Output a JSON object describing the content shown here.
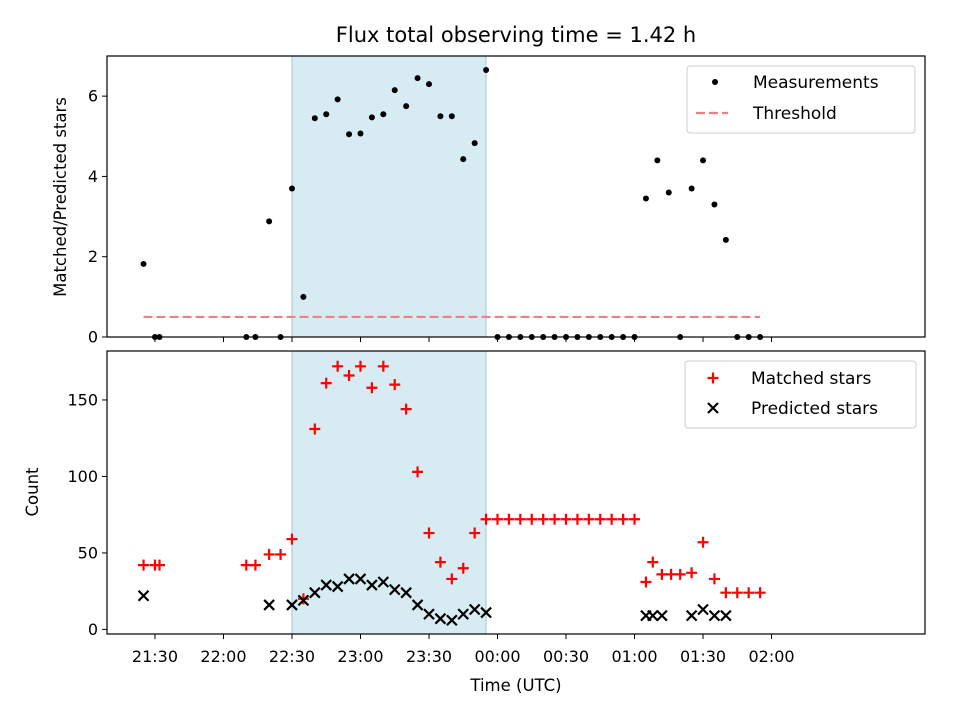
{
  "figure_title": "Flux total observing time = 1.42 h",
  "chart_data": [
    {
      "type": "scatter",
      "panel": "top",
      "ylabel": "Matched/Predicted stars",
      "ylim": [
        0,
        7
      ],
      "yticks": [
        0,
        2,
        4,
        6
      ],
      "xlim": [
        -0.35,
        5.62
      ],
      "shaded_span": [
        "22:30",
        "23:55"
      ],
      "series": [
        {
          "name": "Measurements",
          "marker": "dot",
          "color": "#000000",
          "x": [
            "21:25",
            "21:30",
            "21:32",
            "22:10",
            "22:14",
            "22:20",
            "22:25",
            "22:30",
            "22:35",
            "22:40",
            "22:45",
            "22:50",
            "22:55",
            "23:00",
            "23:05",
            "23:10",
            "23:15",
            "23:20",
            "23:25",
            "23:30",
            "23:35",
            "23:40",
            "23:45",
            "23:50",
            "23:55",
            "00:00",
            "00:05",
            "00:10",
            "00:15",
            "00:20",
            "00:25",
            "00:30",
            "00:35",
            "00:40",
            "00:45",
            "00:50",
            "00:55",
            "01:00",
            "01:05",
            "01:10",
            "01:15",
            "01:20",
            "01:25",
            "01:30",
            "01:35",
            "01:40",
            "01:45",
            "01:50",
            "01:55"
          ],
          "y": [
            1.82,
            0,
            0,
            0,
            0,
            2.88,
            0,
            3.7,
            1.0,
            5.45,
            5.55,
            5.92,
            5.05,
            5.07,
            5.47,
            5.55,
            6.15,
            5.75,
            6.45,
            6.3,
            5.5,
            5.5,
            4.43,
            4.83,
            6.65,
            0,
            0,
            0,
            0,
            0,
            0,
            0,
            0,
            0,
            0,
            0,
            0,
            0,
            3.45,
            4.4,
            3.6,
            0,
            3.7,
            4.4,
            3.3,
            2.42,
            0,
            0,
            0
          ]
        },
        {
          "name": "Threshold",
          "style": "dashed",
          "color": "#f08080",
          "x": [
            "21:25",
            "01:55"
          ],
          "y": [
            0.5,
            0.5
          ]
        }
      ],
      "legend": "top-right"
    },
    {
      "type": "scatter",
      "panel": "bottom",
      "xlabel": "Time (UTC)",
      "ylabel": "Count",
      "ylim": [
        -3,
        182
      ],
      "yticks": [
        0,
        50,
        100,
        150
      ],
      "xlim": [
        -0.35,
        5.62
      ],
      "xticks": [
        "21:30",
        "22:00",
        "22:30",
        "23:00",
        "23:30",
        "00:00",
        "00:30",
        "01:00",
        "01:30",
        "02:00"
      ],
      "shaded_span": [
        "22:30",
        "23:55"
      ],
      "series": [
        {
          "name": "Matched stars",
          "marker": "plus",
          "color": "#ff0000",
          "x": [
            "21:25",
            "21:30",
            "21:32",
            "22:10",
            "22:14",
            "22:20",
            "22:25",
            "22:30",
            "22:35",
            "22:40",
            "22:45",
            "22:50",
            "22:55",
            "23:00",
            "23:05",
            "23:10",
            "23:15",
            "23:20",
            "23:25",
            "23:30",
            "23:35",
            "23:40",
            "23:45",
            "23:50",
            "23:55",
            "00:00",
            "00:05",
            "00:10",
            "00:15",
            "00:20",
            "00:25",
            "00:30",
            "00:35",
            "00:40",
            "00:45",
            "00:50",
            "00:55",
            "01:00",
            "01:05",
            "01:08",
            "01:12",
            "01:16",
            "01:20",
            "01:25",
            "01:30",
            "01:35",
            "01:40",
            "01:45",
            "01:50",
            "01:55"
          ],
          "y": [
            42,
            42,
            42,
            42,
            42,
            49,
            49,
            59,
            20,
            131,
            161,
            172,
            166,
            172,
            158,
            172,
            160,
            144,
            103,
            63,
            44,
            33,
            40,
            63,
            72,
            72,
            72,
            72,
            72,
            72,
            72,
            72,
            72,
            72,
            72,
            72,
            72,
            72,
            31,
            44,
            36,
            36,
            36,
            37,
            57,
            33,
            24,
            24,
            24,
            24
          ]
        },
        {
          "name": "Predicted stars",
          "marker": "x",
          "color": "#000000",
          "x": [
            "21:25",
            "22:20",
            "22:30",
            "22:35",
            "22:40",
            "22:45",
            "22:50",
            "22:55",
            "23:00",
            "23:05",
            "23:10",
            "23:15",
            "23:20",
            "23:25",
            "23:30",
            "23:35",
            "23:40",
            "23:45",
            "23:50",
            "23:55",
            "01:05",
            "01:08",
            "01:12",
            "01:25",
            "01:30",
            "01:35",
            "01:40"
          ],
          "y": [
            22,
            16,
            16,
            19,
            24,
            29,
            28,
            33,
            33,
            29,
            31,
            26,
            24,
            16,
            10,
            7,
            6,
            10,
            13,
            11,
            9,
            9,
            9,
            9,
            13,
            9,
            9
          ]
        }
      ],
      "legend": "top-right"
    }
  ]
}
